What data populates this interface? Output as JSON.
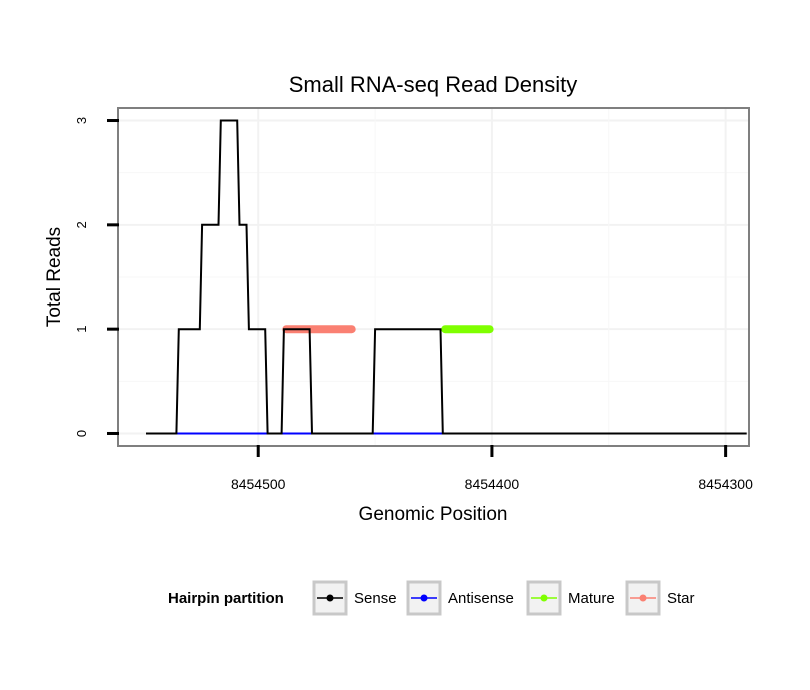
{
  "chart_data": {
    "type": "line",
    "title": "Small RNA-seq Read Density",
    "xlabel": "Genomic Position",
    "ylabel": "Total Reads",
    "x_reversed": true,
    "xlim": [
      8454560,
      8454290
    ],
    "ylim": [
      -0.12,
      3.12
    ],
    "xticks": [
      8454500,
      8454400,
      8454300
    ],
    "yticks": [
      0,
      1,
      2,
      3
    ],
    "grid": true,
    "legend_position": "bottom",
    "legend": {
      "title": "Hairpin partition",
      "entries": [
        "Sense",
        "Antisense",
        "Mature",
        "Star"
      ]
    },
    "series": [
      {
        "name": "Sense",
        "color": "#000000",
        "x": [
          8454548,
          8454535,
          8454534,
          8454525,
          8454524,
          8454517,
          8454516,
          8454509,
          8454508,
          8454505,
          8454504,
          8454497,
          8454496,
          8454490,
          8454489,
          8454478,
          8454477,
          8454451,
          8454450,
          8454422,
          8454421,
          8454401,
          8454400,
          8454291
        ],
        "y": [
          0,
          0,
          1,
          1,
          2,
          2,
          3,
          3,
          2,
          2,
          1,
          1,
          0,
          0,
          1,
          1,
          0,
          0,
          1,
          1,
          0,
          0,
          0,
          0
        ]
      },
      {
        "name": "Antisense",
        "color": "#0000ff",
        "x": [
          8454535,
          8454400
        ],
        "y": [
          0,
          0
        ]
      },
      {
        "name": "Mature",
        "color": "#7fff00",
        "x": [
          8454420,
          8454401
        ],
        "y": [
          1,
          1
        ]
      },
      {
        "name": "Star",
        "color": "#fa8072",
        "x": [
          8454488,
          8454460
        ],
        "y": [
          1,
          1
        ]
      }
    ]
  }
}
